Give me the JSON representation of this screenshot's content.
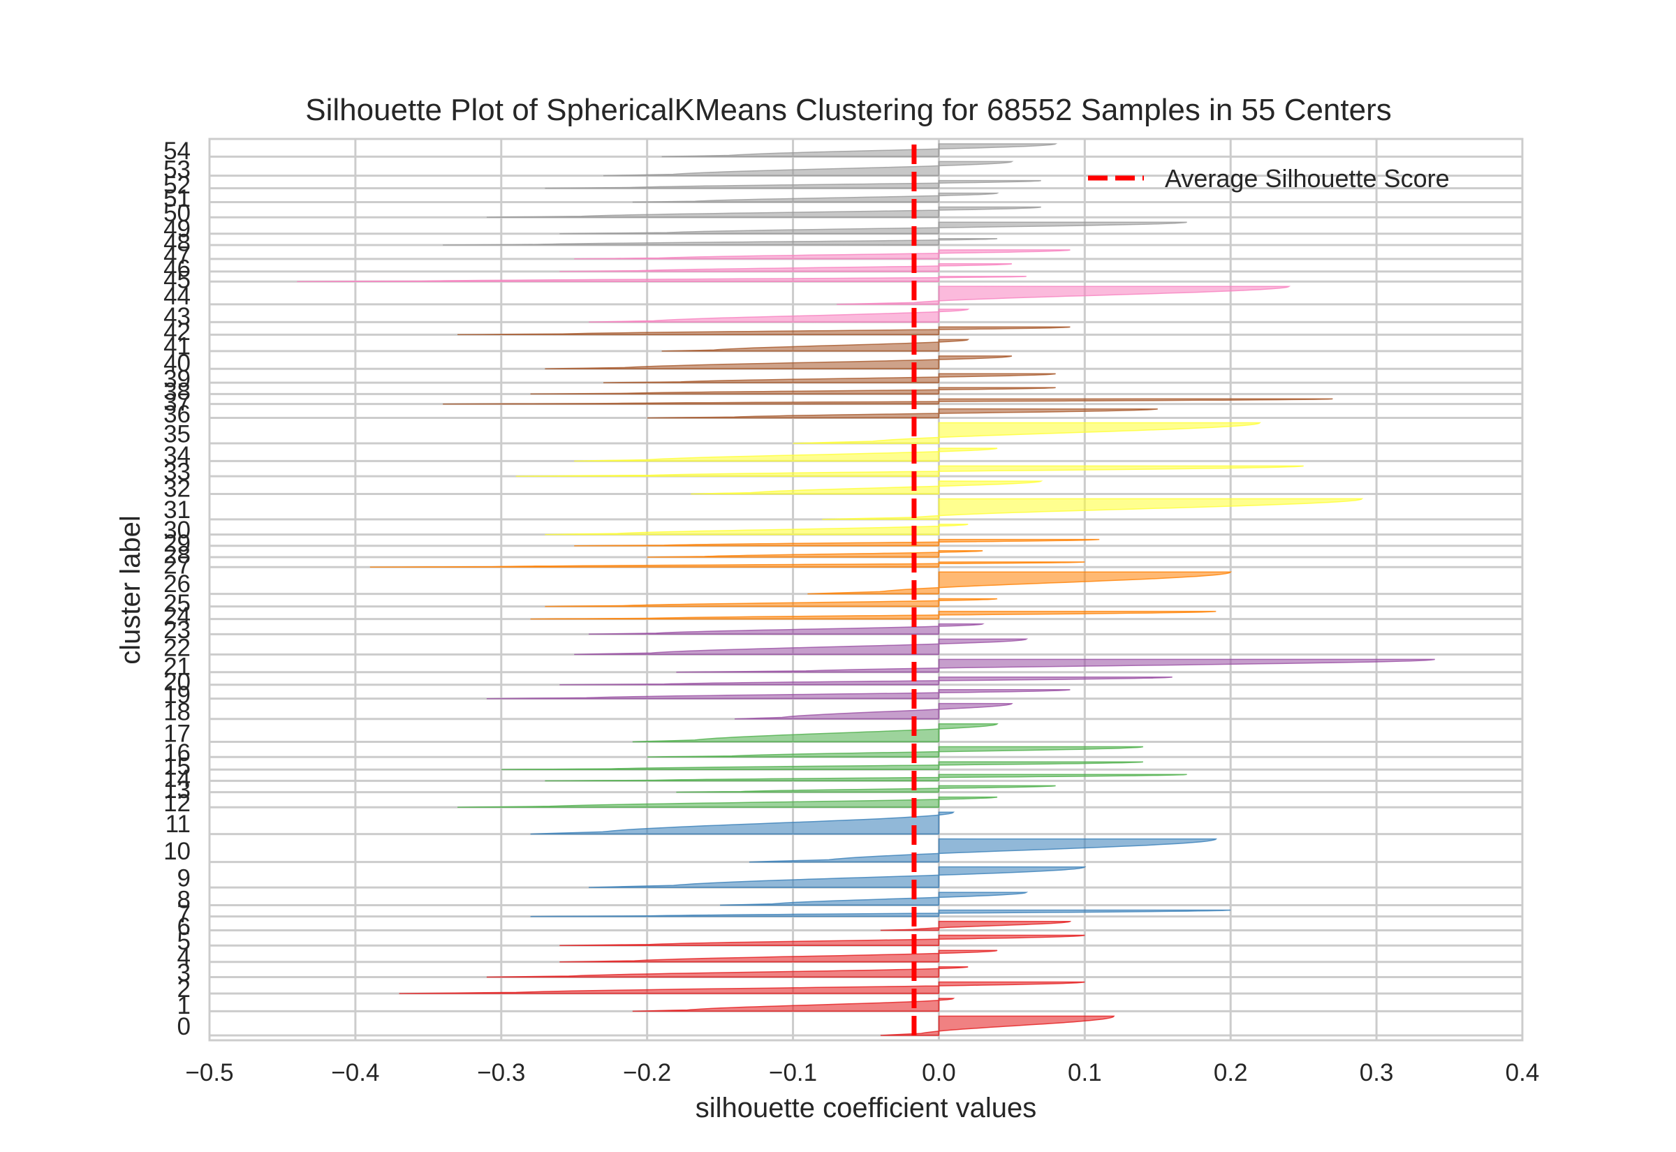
{
  "chart_data": {
    "type": "area",
    "title": "Silhouette Plot of SphericalKMeans Clustering for 68552 Samples in 55 Centers",
    "xlabel": "silhouette coefficient values",
    "ylabel": "cluster label",
    "xlim": [
      -0.5,
      0.4
    ],
    "xticks": [
      -0.5,
      -0.4,
      -0.3,
      -0.2,
      -0.1,
      0.0,
      0.1,
      0.2,
      0.3,
      0.4
    ],
    "xtick_labels": [
      "−0.5",
      "−0.4",
      "−0.3",
      "−0.2",
      "−0.1",
      "0.0",
      "0.1",
      "0.2",
      "0.3",
      "0.4"
    ],
    "grid": true,
    "average_silhouette_score": -0.017,
    "legend": {
      "label": "Average Silhouette Score",
      "placement": "top-right",
      "color": "#ff0000"
    },
    "cluster_labels": [
      "0",
      "1",
      "2",
      "3",
      "4",
      "5",
      "6",
      "7",
      "8",
      "9",
      "10",
      "11",
      "12",
      "13",
      "14",
      "15",
      "16",
      "17",
      "18",
      "19",
      "20",
      "21",
      "22",
      "23",
      "24",
      "25",
      "26",
      "27",
      "28",
      "29",
      "30",
      "31",
      "32",
      "33",
      "34",
      "35",
      "36",
      "37",
      "38",
      "39",
      "40",
      "41",
      "42",
      "43",
      "44",
      "45",
      "46",
      "47",
      "48",
      "49",
      "50",
      "51",
      "52",
      "53",
      "54"
    ],
    "clusters": [
      {
        "label": "0",
        "size": 1.5,
        "max": 0.12,
        "min": -0.04,
        "color": "#e41a1c"
      },
      {
        "label": "1",
        "size": 1.0,
        "max": 0.01,
        "min": -0.21,
        "color": "#e41a1c"
      },
      {
        "label": "2",
        "size": 0.9,
        "max": 0.1,
        "min": -0.37,
        "color": "#e41a1c"
      },
      {
        "label": "3",
        "size": 0.8,
        "max": 0.02,
        "min": -0.31,
        "color": "#e41a1c"
      },
      {
        "label": "4",
        "size": 0.9,
        "max": 0.04,
        "min": -0.26,
        "color": "#e41a1c"
      },
      {
        "label": "5",
        "size": 0.8,
        "max": 0.1,
        "min": -0.26,
        "color": "#e41a1c"
      },
      {
        "label": "6",
        "size": 0.7,
        "max": 0.09,
        "min": -0.04,
        "color": "#e41a1c"
      },
      {
        "label": "7",
        "size": 0.5,
        "max": 0.2,
        "min": -0.28,
        "color": "#377eb8"
      },
      {
        "label": "8",
        "size": 1.0,
        "max": 0.06,
        "min": -0.15,
        "color": "#377eb8"
      },
      {
        "label": "9",
        "size": 1.6,
        "max": 0.1,
        "min": -0.24,
        "color": "#377eb8"
      },
      {
        "label": "10",
        "size": 1.8,
        "max": 0.19,
        "min": -0.13,
        "color": "#377eb8"
      },
      {
        "label": "11",
        "size": 1.7,
        "max": 0.01,
        "min": -0.28,
        "color": "#377eb8"
      },
      {
        "label": "12",
        "size": 0.8,
        "max": 0.04,
        "min": -0.33,
        "color": "#4daf4a"
      },
      {
        "label": "13",
        "size": 0.5,
        "max": 0.08,
        "min": -0.18,
        "color": "#4daf4a"
      },
      {
        "label": "14",
        "size": 0.5,
        "max": 0.17,
        "min": -0.27,
        "color": "#4daf4a"
      },
      {
        "label": "15",
        "size": 0.6,
        "max": 0.14,
        "min": -0.3,
        "color": "#4daf4a"
      },
      {
        "label": "16",
        "size": 0.8,
        "max": 0.14,
        "min": -0.2,
        "color": "#4daf4a"
      },
      {
        "label": "17",
        "size": 1.4,
        "max": 0.04,
        "min": -0.21,
        "color": "#4daf4a"
      },
      {
        "label": "18",
        "size": 1.2,
        "max": 0.05,
        "min": -0.14,
        "color": "#984ea3"
      },
      {
        "label": "19",
        "size": 0.7,
        "max": 0.09,
        "min": -0.31,
        "color": "#984ea3"
      },
      {
        "label": "20",
        "size": 0.6,
        "max": 0.16,
        "min": -0.26,
        "color": "#984ea3"
      },
      {
        "label": "21",
        "size": 1.0,
        "max": 0.34,
        "min": -0.18,
        "color": "#984ea3"
      },
      {
        "label": "22",
        "size": 1.2,
        "max": 0.06,
        "min": -0.25,
        "color": "#984ea3"
      },
      {
        "label": "23",
        "size": 0.8,
        "max": 0.03,
        "min": -0.24,
        "color": "#984ea3"
      },
      {
        "label": "24",
        "size": 0.6,
        "max": 0.19,
        "min": -0.28,
        "color": "#ff7f00"
      },
      {
        "label": "25",
        "size": 0.6,
        "max": 0.04,
        "min": -0.27,
        "color": "#ff7f00"
      },
      {
        "label": "26",
        "size": 1.7,
        "max": 0.2,
        "min": -0.09,
        "color": "#ff7f00"
      },
      {
        "label": "27",
        "size": 0.4,
        "max": 0.1,
        "min": -0.39,
        "color": "#ff7f00"
      },
      {
        "label": "28",
        "size": 0.5,
        "max": 0.03,
        "min": -0.2,
        "color": "#ff7f00"
      },
      {
        "label": "29",
        "size": 0.5,
        "max": 0.11,
        "min": -0.25,
        "color": "#ff7f00"
      },
      {
        "label": "30",
        "size": 0.8,
        "max": 0.02,
        "min": -0.27,
        "color": "#ffff33"
      },
      {
        "label": "31",
        "size": 1.6,
        "max": 0.29,
        "min": -0.08,
        "color": "#ffff33"
      },
      {
        "label": "32",
        "size": 1.0,
        "max": 0.07,
        "min": -0.17,
        "color": "#ffff33"
      },
      {
        "label": "33",
        "size": 0.8,
        "max": 0.25,
        "min": -0.29,
        "color": "#ffff33"
      },
      {
        "label": "34",
        "size": 1.0,
        "max": 0.04,
        "min": -0.25,
        "color": "#ffff33"
      },
      {
        "label": "35",
        "size": 1.6,
        "max": 0.22,
        "min": -0.1,
        "color": "#ffff33"
      },
      {
        "label": "36",
        "size": 0.7,
        "max": 0.15,
        "min": -0.2,
        "color": "#a65628"
      },
      {
        "label": "37",
        "size": 0.4,
        "max": 0.27,
        "min": -0.34,
        "color": "#a65628"
      },
      {
        "label": "38",
        "size": 0.5,
        "max": 0.08,
        "min": -0.28,
        "color": "#a65628"
      },
      {
        "label": "39",
        "size": 0.7,
        "max": 0.08,
        "min": -0.23,
        "color": "#a65628"
      },
      {
        "label": "40",
        "size": 1.0,
        "max": 0.05,
        "min": -0.27,
        "color": "#a65628"
      },
      {
        "label": "41",
        "size": 0.9,
        "max": 0.02,
        "min": -0.19,
        "color": "#a65628"
      },
      {
        "label": "42",
        "size": 0.6,
        "max": 0.09,
        "min": -0.33,
        "color": "#a65628"
      },
      {
        "label": "43",
        "size": 1.0,
        "max": 0.02,
        "min": -0.24,
        "color": "#f781bf"
      },
      {
        "label": "44",
        "size": 1.4,
        "max": 0.24,
        "min": -0.07,
        "color": "#f781bf"
      },
      {
        "label": "45",
        "size": 0.4,
        "max": 0.06,
        "min": -0.44,
        "color": "#f781bf"
      },
      {
        "label": "46",
        "size": 0.6,
        "max": 0.05,
        "min": -0.26,
        "color": "#f781bf"
      },
      {
        "label": "47",
        "size": 0.7,
        "max": 0.09,
        "min": -0.25,
        "color": "#f781bf"
      },
      {
        "label": "48",
        "size": 0.5,
        "max": 0.04,
        "min": -0.34,
        "color": "#999999"
      },
      {
        "label": "49",
        "size": 0.9,
        "max": 0.17,
        "min": -0.26,
        "color": "#999999"
      },
      {
        "label": "50",
        "size": 0.8,
        "max": 0.07,
        "min": -0.31,
        "color": "#999999"
      },
      {
        "label": "51",
        "size": 0.7,
        "max": 0.04,
        "min": -0.21,
        "color": "#999999"
      },
      {
        "label": "52",
        "size": 0.6,
        "max": 0.07,
        "min": -0.27,
        "color": "#999999"
      },
      {
        "label": "53",
        "size": 1.1,
        "max": 0.05,
        "min": -0.23,
        "color": "#999999"
      },
      {
        "label": "54",
        "size": 1.0,
        "max": 0.08,
        "min": -0.19,
        "color": "#999999"
      }
    ]
  }
}
